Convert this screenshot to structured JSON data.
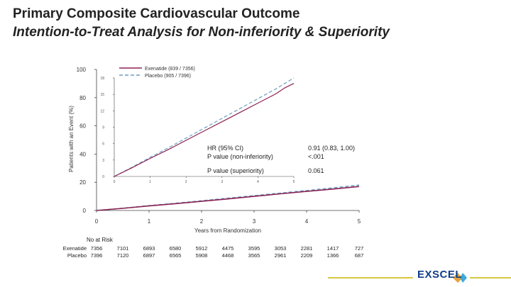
{
  "slide": {
    "title_line1": "Primary Composite Cardiovascular Outcome",
    "title_line2": "Intention-to-Treat Analysis for Non-inferiority & Superiority",
    "logo_text": "EXSCEL"
  },
  "colors": {
    "exenatide": "#8b2252",
    "placebo": "#6a9ec2",
    "axis": "#444444",
    "accent_line": "#c9b500",
    "logo": "#123e8a"
  },
  "chart_data": {
    "type": "line",
    "title": "",
    "xlabel": "Years from Randomization",
    "ylabel": "Patients with an Event (%)",
    "xlim": [
      0,
      5
    ],
    "ylim": [
      0,
      100
    ],
    "x_ticks": [
      "0",
      "1",
      "2",
      "3",
      "4",
      "5"
    ],
    "y_ticks": [
      "0",
      "20",
      "40",
      "60",
      "80",
      "100"
    ],
    "series": [
      {
        "name": "Exenatide (839 / 7356)",
        "x": [
          0,
          0.5,
          1,
          1.5,
          2,
          2.5,
          3,
          3.5,
          4,
          4.5,
          5
        ],
        "y": [
          0,
          1.5,
          3.2,
          4.8,
          6.5,
          8.2,
          10,
          11.8,
          13.5,
          15.2,
          17
        ]
      },
      {
        "name": "Placebo (905 / 7396)",
        "x": [
          0,
          0.5,
          1,
          1.5,
          2,
          2.5,
          3,
          3.5,
          4,
          4.5,
          5
        ],
        "y": [
          0,
          1.6,
          3.4,
          5.1,
          6.9,
          8.7,
          10.5,
          12.3,
          14.1,
          16,
          18
        ]
      }
    ],
    "inset": {
      "xlim": [
        0,
        5
      ],
      "ylim": [
        0,
        18
      ],
      "x_ticks": [
        "0",
        "1",
        "2",
        "3",
        "4",
        "5"
      ],
      "y_ticks": [
        "0",
        "3",
        "6",
        "9",
        "12",
        "15",
        "18"
      ],
      "series": [
        {
          "name": "Exenatide",
          "x": [
            0,
            0.5,
            1,
            1.5,
            2,
            2.5,
            3,
            3.5,
            4,
            4.5,
            4.75,
            5
          ],
          "y": [
            0,
            1.6,
            3.3,
            4.9,
            6.6,
            8.3,
            10,
            11.7,
            13.4,
            15.1,
            16.2,
            17
          ]
        },
        {
          "name": "Placebo",
          "x": [
            0,
            0.5,
            1,
            1.5,
            2,
            2.5,
            3,
            3.5,
            4,
            4.5,
            4.75,
            5
          ],
          "y": [
            0,
            1.7,
            3.5,
            5.2,
            7,
            8.8,
            10.6,
            12.4,
            14.2,
            16,
            17,
            18
          ]
        }
      ]
    },
    "stats": {
      "hr_label": "HR (95% CI)",
      "hr_value": "0.91 (0.83, 1.00)",
      "noninf_label": "P value (non-inferiority)",
      "noninf_value": "<.001",
      "sup_label": "P value (superiority)",
      "sup_value": "0.061"
    },
    "risk_table": {
      "header": "No at Risk",
      "rows": [
        {
          "label": "Exenatide",
          "values": [
            "7356",
            "7101",
            "6893",
            "6580",
            "5912",
            "4475",
            "3595",
            "3053",
            "2281",
            "1417",
            "727"
          ]
        },
        {
          "label": "Placebo",
          "values": [
            "7396",
            "7120",
            "6897",
            "6565",
            "5908",
            "4468",
            "3565",
            "2961",
            "2209",
            "1366",
            "687"
          ]
        }
      ]
    }
  }
}
